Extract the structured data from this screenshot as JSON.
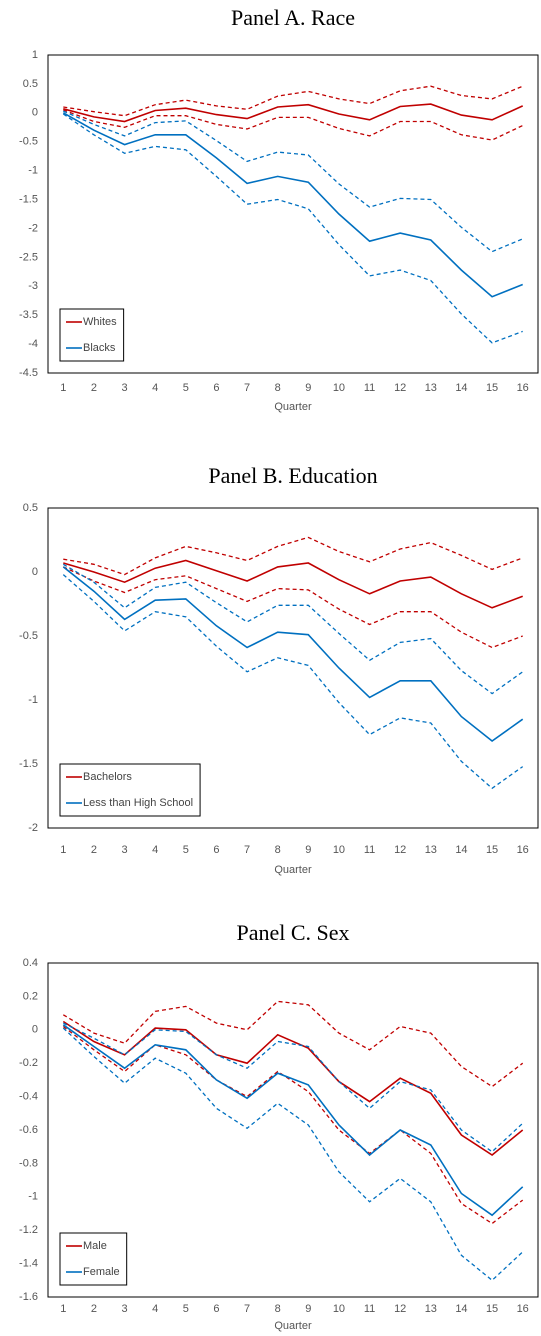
{
  "chart_data": [
    {
      "type": "line",
      "title": "Panel A. Race",
      "x_label": "Quarter",
      "categories": [
        "1",
        "2",
        "3",
        "4",
        "5",
        "6",
        "7",
        "8",
        "9",
        "10",
        "11",
        "12",
        "13",
        "14",
        "15",
        "16"
      ],
      "ylim": [
        -4.5,
        1
      ],
      "yticks": [
        1,
        0.5,
        0,
        -0.5,
        -1,
        -1.5,
        -2,
        -2.5,
        -3,
        -3.5,
        -4,
        -4.5
      ],
      "grid": false,
      "legend": "lower left",
      "series": [
        {
          "name": "Whites",
          "color": "#c00000",
          "values": [
            0.07,
            -0.07,
            -0.15,
            0.04,
            0.08,
            -0.03,
            -0.1,
            0.1,
            0.14,
            -0.02,
            -0.12,
            0.11,
            0.15,
            -0.04,
            -0.12,
            0.12
          ],
          "upper": [
            0.1,
            0.02,
            -0.05,
            0.14,
            0.22,
            0.12,
            0.06,
            0.29,
            0.37,
            0.24,
            0.16,
            0.38,
            0.46,
            0.3,
            0.24,
            0.46
          ],
          "lower": [
            0.05,
            -0.15,
            -0.25,
            -0.05,
            -0.05,
            -0.2,
            -0.28,
            -0.08,
            -0.08,
            -0.27,
            -0.4,
            -0.15,
            -0.15,
            -0.38,
            -0.47,
            -0.22
          ]
        },
        {
          "name": "Blacks",
          "color": "#0070c0",
          "values": [
            0,
            -0.3,
            -0.55,
            -0.38,
            -0.38,
            -0.78,
            -1.22,
            -1.1,
            -1.2,
            -1.75,
            -2.22,
            -2.08,
            -2.2,
            -2.72,
            -3.18,
            -2.97
          ],
          "upper": [
            0.03,
            -0.2,
            -0.4,
            -0.17,
            -0.14,
            -0.48,
            -0.84,
            -0.68,
            -0.73,
            -1.23,
            -1.63,
            -1.48,
            -1.5,
            -1.98,
            -2.4,
            -2.18
          ],
          "lower": [
            -0.02,
            -0.38,
            -0.7,
            -0.58,
            -0.64,
            -1.1,
            -1.58,
            -1.5,
            -1.66,
            -2.28,
            -2.82,
            -2.72,
            -2.9,
            -3.48,
            -3.98,
            -3.78
          ]
        }
      ]
    },
    {
      "type": "line",
      "title": "Panel B. Education",
      "x_label": "Quarter",
      "categories": [
        "1",
        "2",
        "3",
        "4",
        "5",
        "6",
        "7",
        "8",
        "9",
        "10",
        "11",
        "12",
        "13",
        "14",
        "15",
        "16"
      ],
      "ylim": [
        -2,
        0.5
      ],
      "yticks": [
        0.5,
        0,
        -0.5,
        -1,
        -1.5,
        -2
      ],
      "grid": false,
      "legend": "lower left",
      "series": [
        {
          "name": "Bachelors",
          "color": "#c00000",
          "values": [
            0.07,
            0,
            -0.08,
            0.03,
            0.09,
            0.01,
            -0.07,
            0.04,
            0.07,
            -0.06,
            -0.17,
            -0.07,
            -0.04,
            -0.17,
            -0.28,
            -0.19
          ],
          "upper": [
            0.1,
            0.06,
            -0.02,
            0.11,
            0.2,
            0.15,
            0.09,
            0.2,
            0.27,
            0.16,
            0.08,
            0.18,
            0.23,
            0.13,
            0.02,
            0.11
          ],
          "lower": [
            0.04,
            -0.07,
            -0.16,
            -0.06,
            -0.03,
            -0.13,
            -0.23,
            -0.13,
            -0.14,
            -0.29,
            -0.41,
            -0.31,
            -0.31,
            -0.47,
            -0.59,
            -0.5
          ]
        },
        {
          "name": "Less than High School",
          "color": "#0070c0",
          "values": [
            0.04,
            -0.15,
            -0.37,
            -0.22,
            -0.21,
            -0.42,
            -0.59,
            -0.47,
            -0.49,
            -0.75,
            -0.98,
            -0.85,
            -0.85,
            -1.13,
            -1.32,
            -1.15
          ],
          "upper": [
            0.06,
            -0.08,
            -0.28,
            -0.12,
            -0.08,
            -0.24,
            -0.39,
            -0.26,
            -0.26,
            -0.48,
            -0.69,
            -0.55,
            -0.52,
            -0.77,
            -0.95,
            -0.78
          ],
          "lower": [
            -0.02,
            -0.23,
            -0.46,
            -0.31,
            -0.35,
            -0.58,
            -0.78,
            -0.67,
            -0.73,
            -1.02,
            -1.27,
            -1.14,
            -1.18,
            -1.48,
            -1.69,
            -1.52
          ]
        }
      ]
    },
    {
      "type": "line",
      "title": "Panel C. Sex",
      "x_label": "Quarter",
      "categories": [
        "1",
        "2",
        "3",
        "4",
        "5",
        "6",
        "7",
        "8",
        "9",
        "10",
        "11",
        "12",
        "13",
        "14",
        "15",
        "16"
      ],
      "ylim": [
        -1.6,
        0.4
      ],
      "yticks": [
        0.4,
        0.2,
        0,
        -0.2,
        -0.4,
        -0.6,
        -0.8,
        -1,
        -1.2,
        -1.4,
        -1.6
      ],
      "grid": false,
      "legend": "lower left",
      "series": [
        {
          "name": "Male",
          "color": "#c00000",
          "values": [
            0.05,
            -0.07,
            -0.15,
            0.01,
            0,
            -0.15,
            -0.2,
            -0.03,
            -0.11,
            -0.31,
            -0.43,
            -0.29,
            -0.38,
            -0.63,
            -0.75,
            -0.6
          ],
          "upper": [
            0.09,
            -0.02,
            -0.08,
            0.11,
            0.14,
            0.04,
            0,
            0.17,
            0.15,
            -0.02,
            -0.12,
            0.02,
            -0.02,
            -0.22,
            -0.34,
            -0.2
          ],
          "lower": [
            0.02,
            -0.12,
            -0.25,
            -0.09,
            -0.15,
            -0.3,
            -0.4,
            -0.25,
            -0.37,
            -0.6,
            -0.74,
            -0.6,
            -0.74,
            -1.04,
            -1.16,
            -1.02
          ]
        },
        {
          "name": "Female",
          "color": "#0070c0",
          "values": [
            0.03,
            -0.1,
            -0.23,
            -0.09,
            -0.12,
            -0.3,
            -0.41,
            -0.26,
            -0.33,
            -0.57,
            -0.75,
            -0.6,
            -0.69,
            -0.98,
            -1.11,
            -0.94
          ],
          "upper": [
            0.04,
            -0.05,
            -0.15,
            0,
            -0.01,
            -0.15,
            -0.23,
            -0.07,
            -0.1,
            -0.31,
            -0.47,
            -0.31,
            -0.36,
            -0.6,
            -0.73,
            -0.56
          ],
          "lower": [
            0.01,
            -0.16,
            -0.32,
            -0.17,
            -0.26,
            -0.47,
            -0.59,
            -0.44,
            -0.57,
            -0.85,
            -1.03,
            -0.89,
            -1.03,
            -1.35,
            -1.5,
            -1.33
          ]
        }
      ]
    }
  ]
}
